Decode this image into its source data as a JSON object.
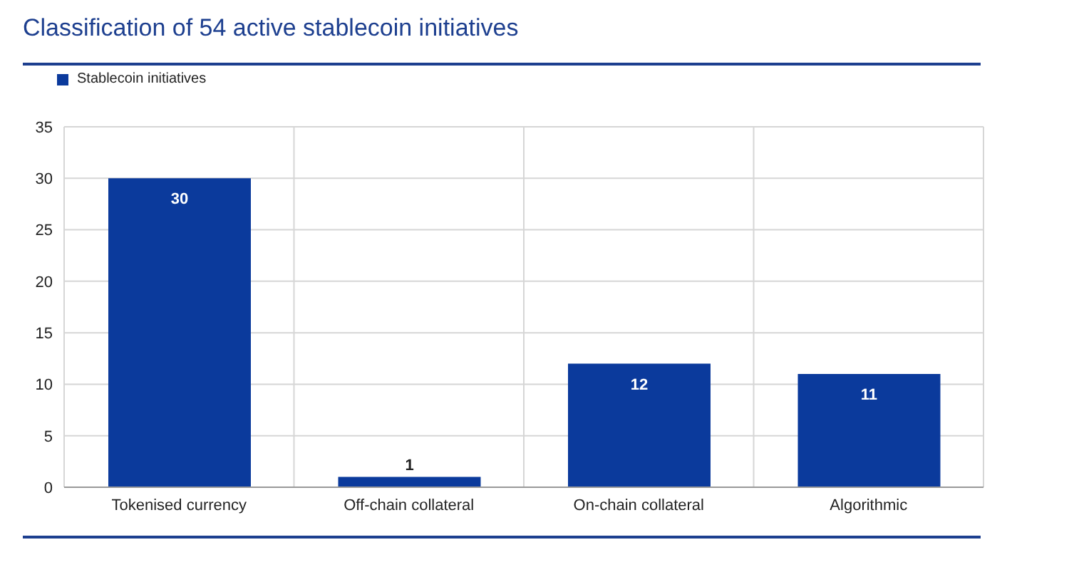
{
  "chart_data": {
    "type": "bar",
    "title": "Classification of 54 active stablecoin initiatives",
    "categories": [
      "Tokenised currency",
      "Off-chain collateral",
      "On-chain collateral",
      "Algorithmic"
    ],
    "series": [
      {
        "name": "Stablecoin initiatives",
        "color": "#0b3a9c",
        "values": [
          30,
          1,
          12,
          11
        ]
      }
    ],
    "ylim": [
      0,
      35
    ],
    "yticks": [
      0,
      5,
      10,
      15,
      20,
      25,
      30,
      35
    ],
    "grid": true,
    "legend": "top left",
    "data_labels": true
  }
}
